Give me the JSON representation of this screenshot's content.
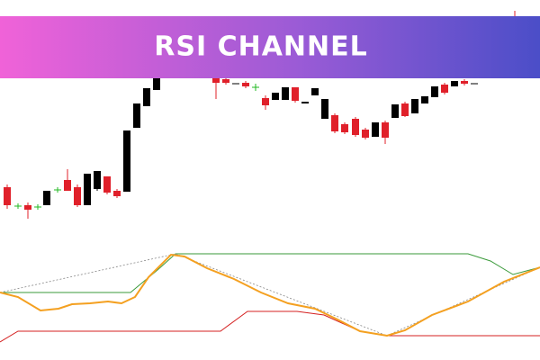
{
  "banner": {
    "title": "RSI CHANNEL"
  }
}
